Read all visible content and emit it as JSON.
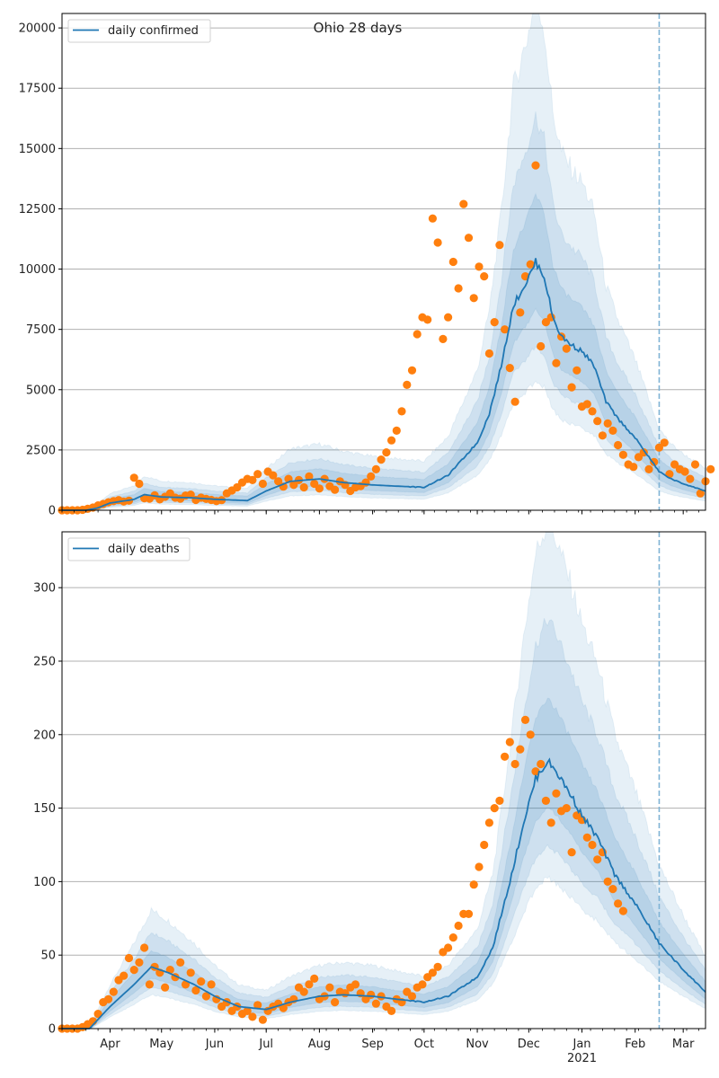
{
  "figure": {
    "title": "Ohio 28 days"
  },
  "colors": {
    "line": "#1f77b4",
    "points": "#ff7f0e",
    "band": "#1f77b4",
    "grid": "#b0b0b0",
    "forecast_marker": "#7fb3d5"
  },
  "chart_data": [
    {
      "type": "line",
      "name": "cases",
      "title": "Ohio 28 days",
      "legend": "daily confirmed",
      "legend_position": "top-left",
      "xlabel": "",
      "ylabel": "",
      "x_start": "2020-03-04",
      "x_end": "2021-03-14",
      "forecast_start": "2021-02-15",
      "ylim": [
        0,
        20600
      ],
      "yticks": [
        0,
        2500,
        5000,
        7500,
        10000,
        12500,
        15000,
        17500,
        20000
      ],
      "ytick_labels": [
        "0",
        "2500",
        "5000",
        "7500",
        "10000",
        "12500",
        "15000",
        "17500",
        "20000"
      ],
      "grid": true,
      "median_knots": [
        [
          0,
          0
        ],
        [
          14,
          0
        ],
        [
          21,
          100
        ],
        [
          28,
          300
        ],
        [
          42,
          450
        ],
        [
          48,
          650
        ],
        [
          58,
          550
        ],
        [
          75,
          520
        ],
        [
          90,
          450
        ],
        [
          108,
          400
        ],
        [
          119,
          800
        ],
        [
          133,
          1200
        ],
        [
          150,
          1300
        ],
        [
          164,
          1150
        ],
        [
          181,
          1050
        ],
        [
          195,
          1000
        ],
        [
          211,
          950
        ],
        [
          225,
          1450
        ],
        [
          242,
          2800
        ],
        [
          249,
          4000
        ],
        [
          256,
          6000
        ],
        [
          263,
          8500
        ],
        [
          271,
          9500
        ],
        [
          276,
          10300
        ],
        [
          281,
          9700
        ],
        [
          286,
          8000
        ],
        [
          291,
          7200
        ],
        [
          298,
          6800
        ],
        [
          303,
          6600
        ],
        [
          310,
          6000
        ],
        [
          317,
          4500
        ],
        [
          324,
          3800
        ],
        [
          334,
          3000
        ],
        [
          341,
          2300
        ],
        [
          348,
          1600
        ],
        [
          355,
          1300
        ],
        [
          362,
          1100
        ],
        [
          375,
          800
        ]
      ],
      "band_widths": [
        0.25,
        0.55,
        1.0
      ],
      "observed_every_days": 3,
      "observed": [
        0,
        0,
        0,
        0,
        20,
        60,
        110,
        200,
        260,
        330,
        380,
        420,
        360,
        400,
        1350,
        1100,
        500,
        480,
        620,
        450,
        560,
        700,
        520,
        480,
        610,
        650,
        430,
        520,
        470,
        430,
        380,
        420,
        700,
        820,
        950,
        1150,
        1300,
        1250,
        1500,
        1100,
        1600,
        1450,
        1200,
        980,
        1300,
        1050,
        1250,
        950,
        1400,
        1100,
        900,
        1300,
        1000,
        850,
        1200,
        1050,
        800,
        950,
        1000,
        1150,
        1400,
        1700,
        2100,
        2400,
        2900,
        3300,
        4100,
        5200,
        5800,
        7300,
        8000,
        7900,
        12100,
        11100,
        7100,
        8000,
        10300,
        9200,
        12700,
        11300,
        8800,
        10100,
        9700,
        6500,
        7800,
        11000,
        7500,
        5900,
        4500,
        8200,
        9700,
        10200,
        14300,
        6800,
        7800,
        8000,
        6100,
        7200,
        6700,
        5100,
        5800,
        4300,
        4400,
        4100,
        3700,
        3100,
        3600,
        3300,
        2700,
        2300,
        1900,
        1800,
        2200,
        2400,
        1700,
        2000,
        2600,
        2800,
        1500,
        1900,
        1700,
        1600,
        1300,
        1900,
        700,
        1200,
        1700
      ]
    },
    {
      "type": "line",
      "name": "deaths",
      "legend": "daily deaths",
      "legend_position": "top-left",
      "xlabel": "",
      "ylabel": "",
      "x_start": "2020-03-04",
      "x_end": "2021-03-14",
      "forecast_start": "2021-02-15",
      "ylim": [
        0,
        338
      ],
      "yticks": [
        0,
        50,
        100,
        150,
        200,
        250,
        300
      ],
      "ytick_labels": [
        "0",
        "50",
        "100",
        "150",
        "200",
        "250",
        "300"
      ],
      "xtick_labels": [
        "Apr",
        "May",
        "Jun",
        "Jul",
        "Aug",
        "Sep",
        "Oct",
        "Nov",
        "Dec",
        "Jan\n2021",
        "Feb",
        "Mar"
      ],
      "xtick_dates": [
        "2020-04-01",
        "2020-05-01",
        "2020-06-01",
        "2020-07-01",
        "2020-08-01",
        "2020-09-01",
        "2020-10-01",
        "2020-11-01",
        "2020-12-01",
        "2021-01-01",
        "2021-02-01",
        "2021-03-01"
      ],
      "year_label": "2021",
      "grid": true,
      "median_knots": [
        [
          0,
          0
        ],
        [
          16,
          0
        ],
        [
          28,
          15
        ],
        [
          42,
          30
        ],
        [
          52,
          42
        ],
        [
          62,
          38
        ],
        [
          77,
          30
        ],
        [
          89,
          22
        ],
        [
          103,
          15
        ],
        [
          119,
          13
        ],
        [
          133,
          18
        ],
        [
          150,
          22
        ],
        [
          164,
          23
        ],
        [
          181,
          22
        ],
        [
          195,
          20
        ],
        [
          211,
          18
        ],
        [
          225,
          22
        ],
        [
          242,
          35
        ],
        [
          251,
          55
        ],
        [
          261,
          100
        ],
        [
          269,
          140
        ],
        [
          276,
          170
        ],
        [
          283,
          182
        ],
        [
          288,
          175
        ],
        [
          296,
          160
        ],
        [
          303,
          145
        ],
        [
          312,
          130
        ],
        [
          322,
          105
        ],
        [
          334,
          85
        ],
        [
          343,
          68
        ],
        [
          348,
          58
        ],
        [
          362,
          40
        ],
        [
          375,
          25
        ]
      ],
      "band_widths": [
        0.22,
        0.5,
        0.85
      ],
      "observed_every_days": 3,
      "observed": [
        0,
        0,
        0,
        0,
        1,
        3,
        5,
        10,
        18,
        20,
        25,
        33,
        36,
        48,
        40,
        45,
        55,
        30,
        42,
        38,
        28,
        40,
        35,
        45,
        30,
        38,
        26,
        32,
        22,
        30,
        20,
        15,
        18,
        12,
        15,
        10,
        12,
        8,
        16,
        6,
        12,
        15,
        17,
        14,
        18,
        20,
        28,
        25,
        30,
        34,
        20,
        22,
        28,
        18,
        25,
        24,
        28,
        30,
        24,
        20,
        23,
        17,
        22,
        15,
        12,
        20,
        18,
        25,
        22,
        28,
        30,
        35,
        38,
        42,
        52,
        55,
        62,
        70,
        78,
        78,
        98,
        110,
        125,
        140,
        150,
        155,
        185,
        195,
        180,
        190,
        210,
        200,
        175,
        180,
        155,
        140,
        160,
        148,
        150,
        120,
        145,
        142,
        130,
        125,
        115,
        120,
        100,
        95,
        85,
        80
      ]
    }
  ]
}
